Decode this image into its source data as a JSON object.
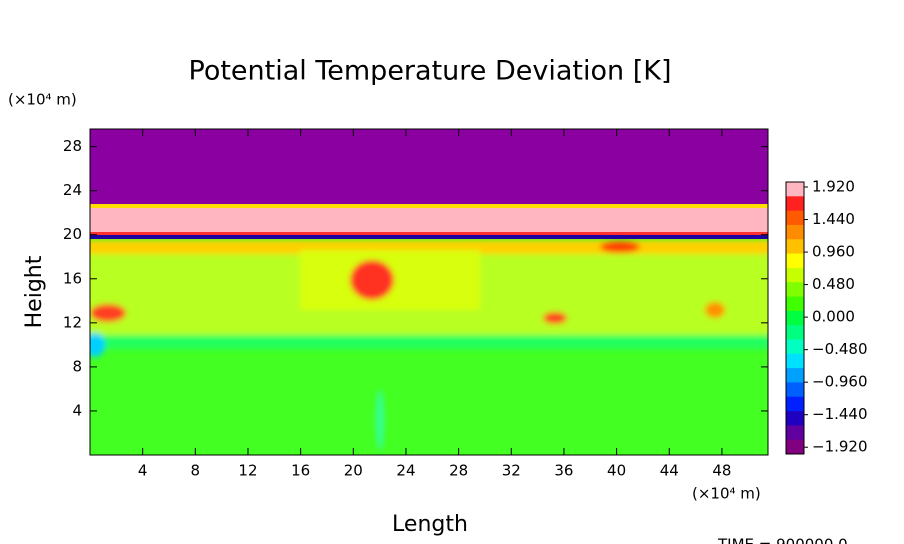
{
  "chart_data": {
    "type": "heatmap",
    "title": "Potential Temperature Deviation [K]",
    "x_label": "Length",
    "y_label": "Height",
    "x_unit": "(×10⁴ m)",
    "y_unit": "(×10⁴ m)",
    "time_label": "TIME = 900000.0",
    "xlim": [
      0,
      51.5
    ],
    "ylim": [
      0,
      29.6
    ],
    "xticks": [
      4,
      8,
      12,
      16,
      20,
      24,
      28,
      32,
      36,
      40,
      44,
      48
    ],
    "yticks": [
      4,
      8,
      12,
      16,
      20,
      24,
      28
    ],
    "colorbar": {
      "lim": [
        -2.02,
        1.994
      ],
      "ticks": [
        {
          "value": 1.92,
          "label": "1.920"
        },
        {
          "value": 1.44,
          "label": "1.440"
        },
        {
          "value": 0.96,
          "label": "0.960"
        },
        {
          "value": 0.48,
          "label": "0.480"
        },
        {
          "value": 0,
          "label": "0.000"
        },
        {
          "value": -0.48,
          "label": "−0.480"
        },
        {
          "value": -0.96,
          "label": "−0.960"
        },
        {
          "value": -1.44,
          "label": "−1.440"
        },
        {
          "value": -1.92,
          "label": "−1.920"
        }
      ],
      "colors": [
        "#ffb6c1",
        "#ff2020",
        "#ff5a00",
        "#ff8c00",
        "#ffc000",
        "#ffff00",
        "#c8ff00",
        "#80ff00",
        "#40ff00",
        "#00ff40",
        "#00ff80",
        "#00ffc0",
        "#00e0ff",
        "#00a0ff",
        "#0060ff",
        "#0020ff",
        "#2000c0",
        "#6000a0",
        "#800080"
      ]
    }
  }
}
